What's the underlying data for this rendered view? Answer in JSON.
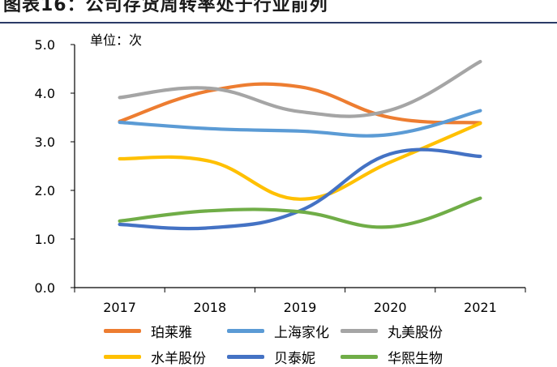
{
  "header": {
    "title": "图表16：公司存货周转率处于行业前列"
  },
  "colors": {
    "珀莱雅": "#ED7D31",
    "上海家化": "#5B9BD5",
    "丸美股份": "#A5A5A5",
    "水羊股份": "#FFC000",
    "贝泰妮": "#4472C4",
    "华熙生物": "#70AD47"
  },
  "chart_data": {
    "type": "line",
    "unit_label": "单位：次",
    "x": [
      "2017",
      "2018",
      "2019",
      "2020",
      "2021"
    ],
    "ylim": [
      0,
      5
    ],
    "yticks": [
      "0.0",
      "1.0",
      "2.0",
      "3.0",
      "4.0",
      "5.0"
    ],
    "ytick_values": [
      0,
      1,
      2,
      3,
      4,
      5
    ],
    "grid": false,
    "legend_position": "bottom",
    "series": [
      {
        "name": "珀莱雅",
        "values": [
          3.42,
          4.05,
          4.13,
          3.5,
          3.39
        ]
      },
      {
        "name": "上海家化",
        "values": [
          3.4,
          3.27,
          3.22,
          3.15,
          3.64
        ]
      },
      {
        "name": "丸美股份",
        "values": [
          3.91,
          4.1,
          3.62,
          3.65,
          4.65
        ]
      },
      {
        "name": "水羊股份",
        "values": [
          2.65,
          2.6,
          1.82,
          2.58,
          3.38
        ]
      },
      {
        "name": "贝泰妮",
        "values": [
          1.3,
          1.23,
          1.58,
          2.75,
          2.7
        ]
      },
      {
        "name": "华熙生物",
        "values": [
          1.37,
          1.58,
          1.56,
          1.25,
          1.84
        ]
      }
    ]
  }
}
